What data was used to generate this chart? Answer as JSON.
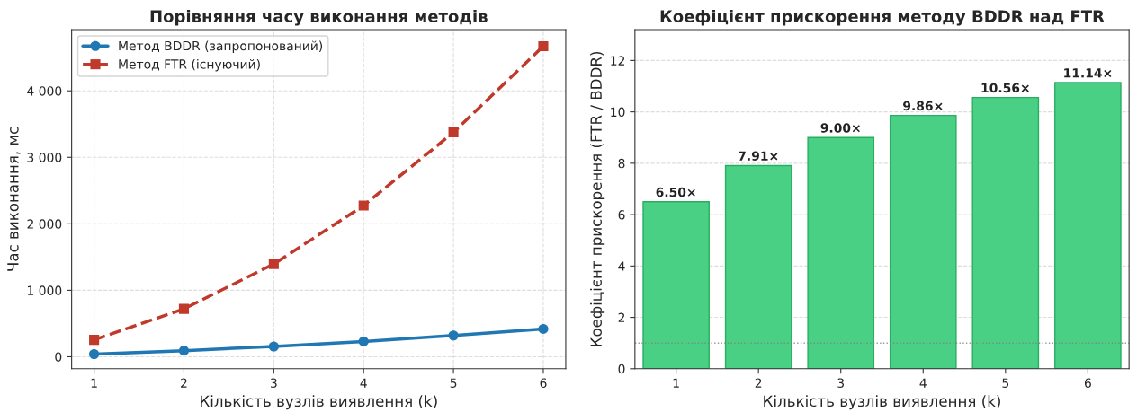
{
  "chart_data": [
    {
      "type": "line",
      "title": "Порівняння часу виконання методів",
      "xlabel": "Кількість вузлів виявлення (k)",
      "ylabel": "Час виконання, мс",
      "x": [
        1,
        2,
        3,
        4,
        5,
        6
      ],
      "series": [
        {
          "name": "Метод BDDR (запропонований)",
          "color": "#1f77b4",
          "values": [
            40,
            92,
            155,
            230,
            320,
            419
          ],
          "marker": "circle",
          "line_style": "solid"
        },
        {
          "name": "Метод FTR (існуючий)",
          "color": "#c0392b",
          "values": [
            255,
            720,
            1395,
            2275,
            3375,
            4670
          ],
          "marker": "square",
          "line_style": "dashed"
        }
      ],
      "xlim": [
        0.75,
        6.25
      ],
      "xticks": [
        1,
        2,
        3,
        4,
        5,
        6
      ],
      "ylim": [
        -180,
        4920
      ],
      "yticks": [
        0,
        {
          "value": 1000,
          "label": "1 000"
        },
        {
          "value": 2000,
          "label": "2 000"
        },
        {
          "value": 3000,
          "label": "3 000"
        },
        {
          "value": 4000,
          "label": "4 000"
        }
      ],
      "grid": true,
      "legend": "top left"
    },
    {
      "type": "bar",
      "title": "Коефіцієнт прискорення методу BDDR над FTR",
      "xlabel": "Кількість вузлів виявлення (k)",
      "ylabel": "Коефіцієнт прискорення (FTR / BDDR)",
      "categories": [
        "1",
        "2",
        "3",
        "4",
        "5",
        "6"
      ],
      "values": [
        6.5,
        7.91,
        9.0,
        9.86,
        10.56,
        11.14
      ],
      "value_labels": [
        "6.50×",
        "7.91×",
        "9.00×",
        "9.86×",
        "10.56×",
        "11.14×"
      ],
      "color": "#4ad084",
      "ylim": [
        0,
        13.2
      ],
      "yticks": [
        0,
        2,
        4,
        6,
        8,
        10,
        12
      ],
      "ref_lines": [
        {
          "axis": "y",
          "value": 1,
          "color": "#808080",
          "line_style": "dotted"
        }
      ],
      "grid": "y"
    }
  ]
}
